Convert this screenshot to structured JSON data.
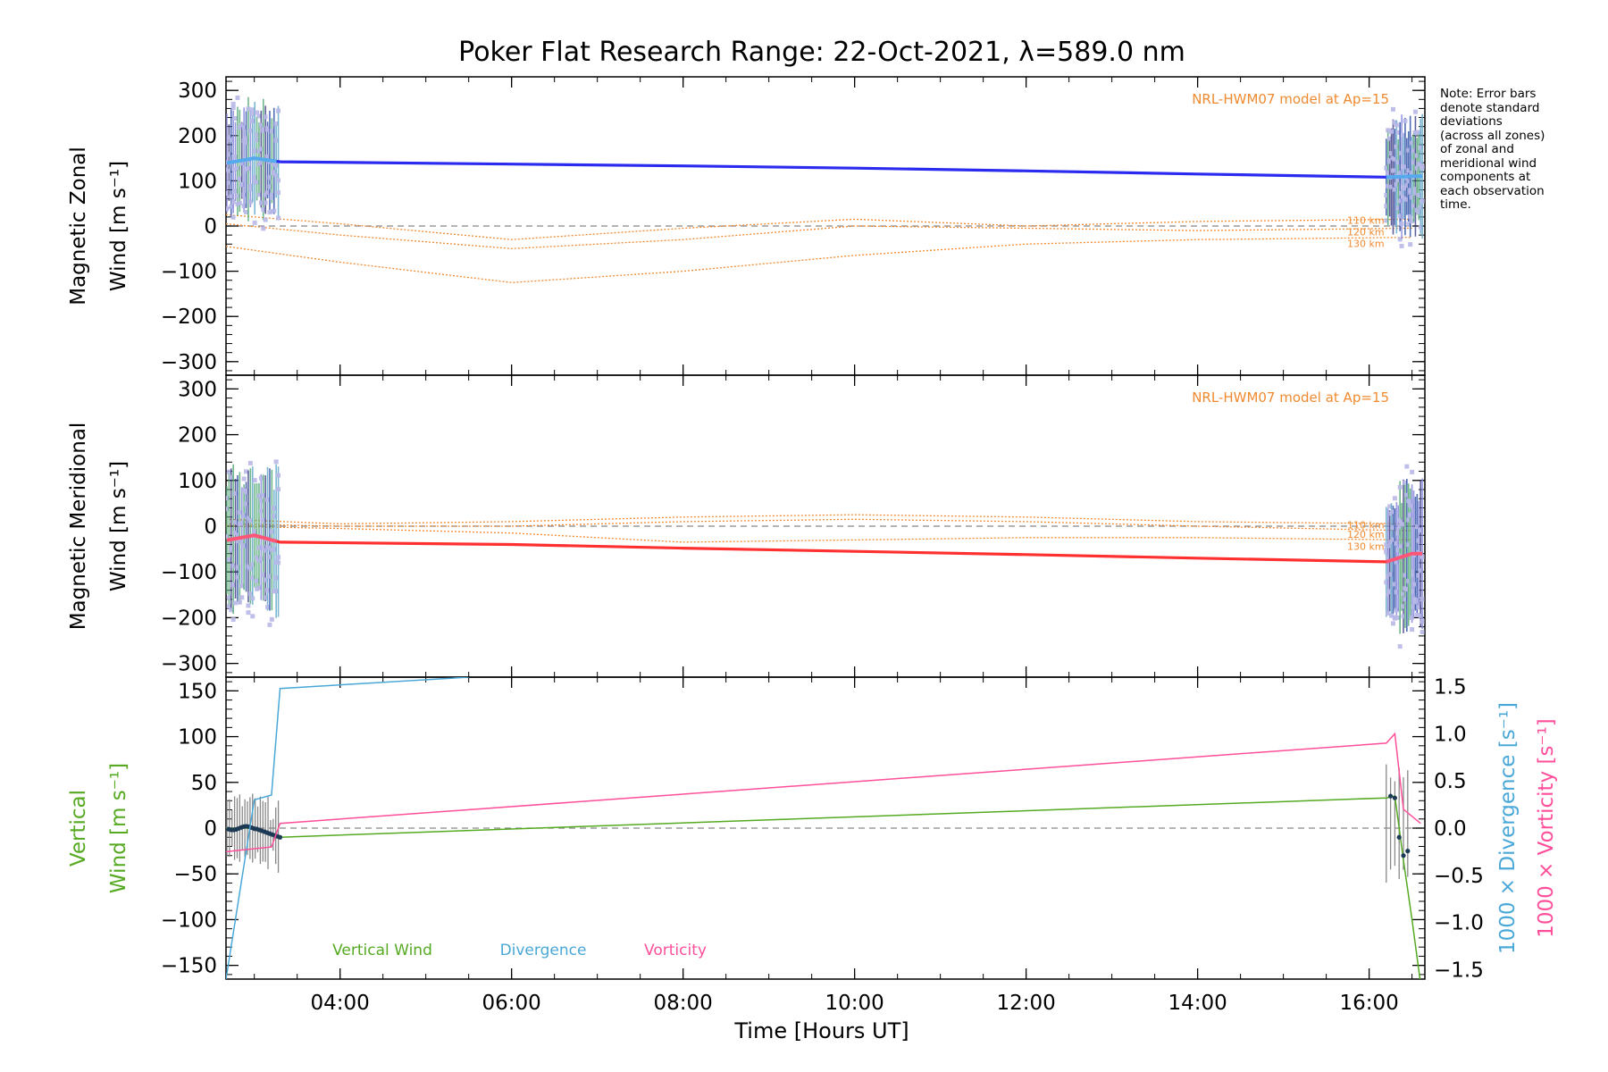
{
  "figure": {
    "title": "Poker Flat Research Range: 22-Oct-2021, λ=589.0 nm",
    "note": "Note: Error bars\ndenote standard\ndeviations\n(across all zones)\nof zonal and\nmeridional wind\ncomponents at\neach observation\ntime.",
    "colors": {
      "zonal": "#2b2bf0",
      "meridional": "#ff3030",
      "model": "#f08a30",
      "vertical": "#55aa22",
      "divergence": "#4aa8d8",
      "vorticity": "#ff4f9a",
      "samples": "#b8b8e8",
      "zero_line": "#888888"
    }
  },
  "chart_data": [
    {
      "type": "line",
      "panel": "zonal",
      "ylabel_line1": "Magnetic Zonal",
      "ylabel_line2": "Wind [m s⁻¹]",
      "ylim": [
        -330,
        330
      ],
      "y_ticks": [
        "300",
        "200",
        "100",
        "0",
        "−100",
        "−200",
        "−300"
      ],
      "y_tick_values": [
        300,
        200,
        100,
        0,
        -100,
        -200,
        -300
      ],
      "model_label": "NRL-HWM07 model at Ap=15",
      "model_series": [
        {
          "name": "110 km",
          "x": [
            2.67,
            4,
            6,
            8,
            10,
            12,
            14,
            16.5
          ],
          "values": [
            25,
            5,
            -30,
            -5,
            15,
            0,
            10,
            15
          ]
        },
        {
          "name": "120 km",
          "x": [
            2.67,
            4,
            6,
            8,
            10,
            12,
            14,
            16.5
          ],
          "values": [
            5,
            -20,
            -50,
            -30,
            0,
            -5,
            -10,
            -5
          ]
        },
        {
          "name": "130 km",
          "x": [
            2.67,
            4,
            6,
            8,
            10,
            12,
            14,
            16.5
          ],
          "values": [
            -45,
            -80,
            -125,
            -100,
            -65,
            -40,
            -30,
            -25
          ]
        }
      ],
      "mean_series": {
        "name": "Zonal wind",
        "x": [
          2.7,
          3.0,
          3.3,
          6,
          8,
          10,
          12,
          14,
          16.2,
          16.5
        ],
        "values": [
          140,
          150,
          142,
          137,
          133,
          128,
          122,
          115,
          108,
          110
        ]
      }
    },
    {
      "type": "line",
      "panel": "meridional",
      "ylabel_line1": "Magnetic Meridional",
      "ylabel_line2": "Wind [m s⁻¹]",
      "ylim": [
        -330,
        330
      ],
      "y_ticks": [
        "300",
        "200",
        "100",
        "0",
        "−100",
        "−200",
        "−300"
      ],
      "y_tick_values": [
        300,
        200,
        100,
        0,
        -100,
        -200,
        -300
      ],
      "model_label": "NRL-HWM07 model at Ap=15",
      "model_series": [
        {
          "name": "110 km",
          "x": [
            2.67,
            4,
            6,
            8,
            10,
            12,
            14,
            16.5
          ],
          "values": [
            15,
            5,
            10,
            20,
            25,
            20,
            10,
            5
          ]
        },
        {
          "name": "120 km",
          "x": [
            2.67,
            4,
            6,
            8,
            10,
            12,
            14,
            16.5
          ],
          "values": [
            5,
            0,
            0,
            10,
            15,
            10,
            0,
            -10
          ]
        },
        {
          "name": "130 km",
          "x": [
            2.67,
            4,
            6,
            8,
            10,
            12,
            14,
            16.5
          ],
          "values": [
            0,
            -5,
            -15,
            -35,
            -30,
            -25,
            -25,
            -30
          ]
        }
      ],
      "mean_series": {
        "name": "Meridional wind",
        "x": [
          2.7,
          3.0,
          3.3,
          6,
          8,
          10,
          12,
          14,
          16.2,
          16.5
        ],
        "values": [
          -30,
          -20,
          -35,
          -40,
          -48,
          -55,
          -62,
          -70,
          -78,
          -60
        ]
      }
    },
    {
      "type": "line",
      "panel": "vertical",
      "ylabel_line1": "Vertical",
      "ylabel_line2": "Wind [m s⁻¹]",
      "ylim": [
        -165,
        165
      ],
      "y_ticks": [
        "150",
        "100",
        "50",
        "0",
        "−50",
        "−100",
        "−150"
      ],
      "y_tick_values": [
        150,
        100,
        50,
        0,
        -50,
        -100,
        -150
      ],
      "right_axis_div_label": "1000 × Divergence [s⁻¹]",
      "right_axis_vort_label": "1000 × Vorticity [s⁻¹]",
      "right_ylim": [
        -1.6,
        1.6
      ],
      "right_ticks": [
        "1.5",
        "1.0",
        "0.5",
        "0.0",
        "−0.5",
        "−1.0",
        "−1.5"
      ],
      "right_tick_values": [
        1.5,
        1.0,
        0.5,
        0.0,
        -0.5,
        -1.0,
        -1.5
      ],
      "legend": [
        "Vertical Wind",
        "Divergence",
        "Vorticity"
      ],
      "series": [
        {
          "name": "Vertical Wind",
          "x": [
            2.67,
            3.0,
            3.3,
            16.2,
            16.3,
            16.4,
            16.5,
            16.6
          ],
          "values": [
            0,
            0,
            -10,
            33,
            35,
            -35,
            -100,
            -170
          ]
        },
        {
          "name": "Divergence",
          "x": [
            2.67,
            3.0,
            3.2,
            3.3,
            5.5
          ],
          "values": [
            -1.6,
            0.3,
            0.35,
            1.48,
            1.6
          ]
        },
        {
          "name": "Vorticity",
          "x": [
            2.67,
            3.2,
            3.3,
            16.2,
            16.3,
            16.4,
            16.6
          ],
          "values": [
            -0.25,
            -0.2,
            0.05,
            0.9,
            1.0,
            0.2,
            0.05
          ]
        }
      ]
    }
  ],
  "xaxis": {
    "label": "Time [Hours UT]",
    "xlim": [
      2.67,
      16.65
    ],
    "ticks": [
      "04:00",
      "06:00",
      "08:00",
      "10:00",
      "12:00",
      "14:00",
      "16:00"
    ],
    "tick_values": [
      4,
      6,
      8,
      10,
      12,
      14,
      16
    ]
  }
}
